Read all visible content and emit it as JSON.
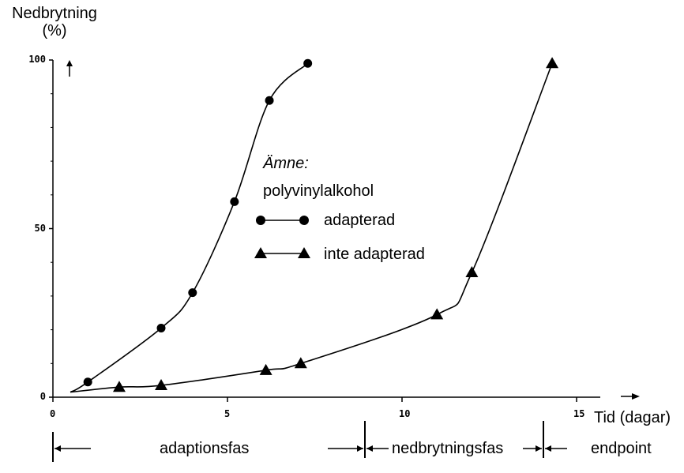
{
  "chart_data": {
    "type": "line",
    "ylabel": "Nedbrytning",
    "ylabel_unit": "(%)",
    "xlabel": "Tid (dagar)",
    "xlim": [
      0,
      16
    ],
    "ylim": [
      0,
      100
    ],
    "x_ticks": [
      "0",
      "5",
      "10",
      "15"
    ],
    "y_ticks": [
      "0",
      "50",
      "100"
    ],
    "grid": false,
    "legend": {
      "title": "Ämne:",
      "subtitle": "polyvinylalkohol",
      "placement": "center"
    },
    "series": [
      {
        "name": "adapterad",
        "marker": "circle",
        "points": [
          [
            1,
            4.5
          ],
          [
            3.1,
            20.5
          ],
          [
            4,
            31
          ],
          [
            5.2,
            58
          ],
          [
            6.2,
            88
          ],
          [
            7.3,
            99
          ]
        ]
      },
      {
        "name": "inte adapterad",
        "marker": "triangle",
        "points": [
          [
            1.9,
            3
          ],
          [
            3.1,
            3.5
          ],
          [
            6.1,
            8
          ],
          [
            7.1,
            10
          ],
          [
            11,
            24.5
          ],
          [
            12,
            37
          ],
          [
            14.3,
            99
          ]
        ]
      }
    ],
    "phases": [
      "adaptionsfas",
      "nedbrytningsfas",
      "endpoint"
    ]
  },
  "colors": {
    "ink": "#000000",
    "background": "#ffffff"
  }
}
